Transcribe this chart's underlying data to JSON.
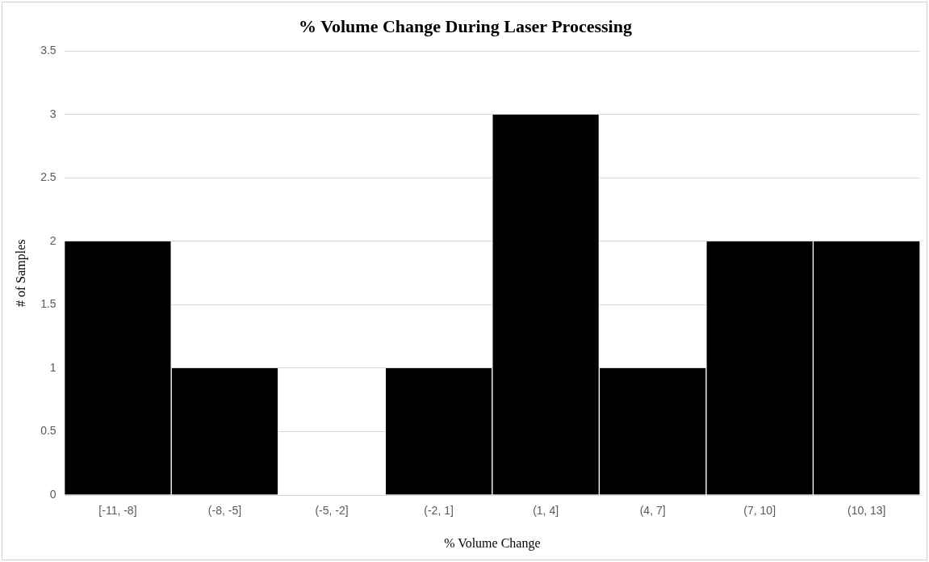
{
  "chart_data": {
    "type": "bar",
    "title": "% Volume Change During Laser Processing",
    "xlabel": "% Volume Change",
    "ylabel": "# of Samples",
    "categories": [
      "[-11, -8]",
      "(-8, -5]",
      "(-5, -2]",
      "(-2, 1]",
      "(1, 4]",
      "(4, 7]",
      "(7, 10]",
      "(10, 13]"
    ],
    "series": [
      {
        "color": "#000000",
        "values": [
          2,
          1,
          0,
          1,
          3,
          1,
          2,
          2
        ]
      }
    ],
    "ylim": [
      0,
      3.5
    ],
    "yticks": [
      0,
      0.5,
      1,
      1.5,
      2,
      2.5,
      3,
      3.5
    ],
    "grid": "y"
  }
}
